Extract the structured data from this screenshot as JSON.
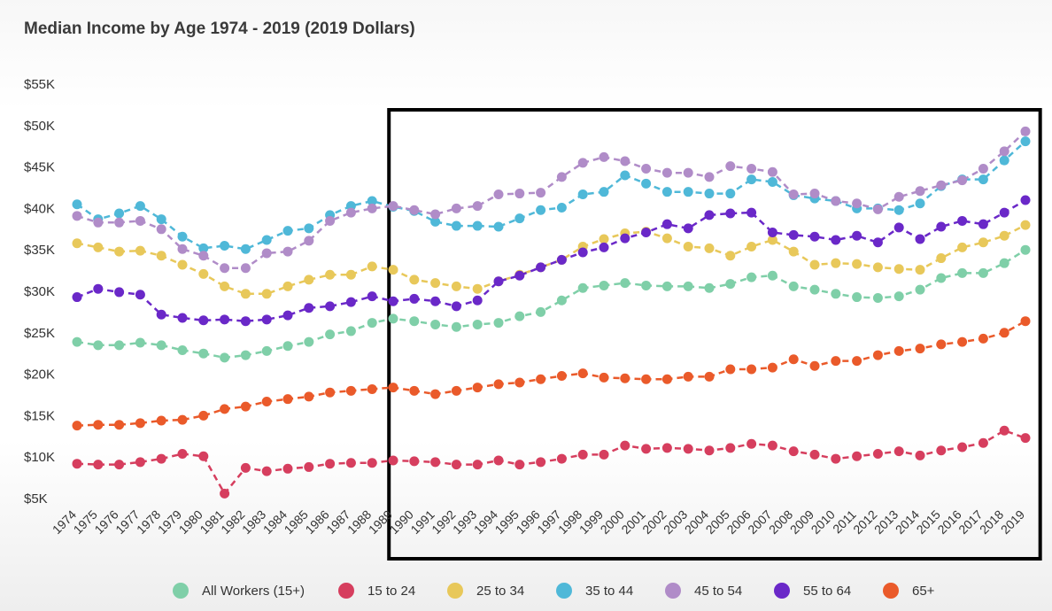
{
  "chart_data": {
    "type": "line",
    "title": "Median Income by Age 1974 - 2019 (2019 Dollars)",
    "xlabel": "",
    "ylabel": "",
    "ylim": [
      5000,
      55000
    ],
    "y_ticks": [
      {
        "value": 5000,
        "label": "$5K"
      },
      {
        "value": 10000,
        "label": "$10K"
      },
      {
        "value": 15000,
        "label": "$15K"
      },
      {
        "value": 20000,
        "label": "$20K"
      },
      {
        "value": 25000,
        "label": "$25K"
      },
      {
        "value": 30000,
        "label": "$30K"
      },
      {
        "value": 35000,
        "label": "$35K"
      },
      {
        "value": 40000,
        "label": "$40K"
      },
      {
        "value": 45000,
        "label": "$45K"
      },
      {
        "value": 50000,
        "label": "$50K"
      },
      {
        "value": 55000,
        "label": "$55K"
      }
    ],
    "x": [
      "1974",
      "1975",
      "1976",
      "1977",
      "1978",
      "1979",
      "1980",
      "1981",
      "1982",
      "1983",
      "1984",
      "1985",
      "1986",
      "1987",
      "1988",
      "1989",
      "1990",
      "1991",
      "1992",
      "1993",
      "1994",
      "1995",
      "1996",
      "1997",
      "1998",
      "1999",
      "2000",
      "2001",
      "2002",
      "2003",
      "2004",
      "2005",
      "2006",
      "2007",
      "2008",
      "2009",
      "2010",
      "2011",
      "2012",
      "2013",
      "2014",
      "2015",
      "2016",
      "2017",
      "2018",
      "2019"
    ],
    "grid": false,
    "legend_position": "bottom",
    "highlight_box": {
      "from": "1989",
      "to": "2019",
      "color": "#000000"
    },
    "series": [
      {
        "name": "All Workers (15+)",
        "color": "#7fcfa8",
        "values": [
          23900,
          23500,
          23500,
          23800,
          23500,
          22900,
          22500,
          22000,
          22300,
          22800,
          23400,
          23900,
          24800,
          25200,
          26200,
          26700,
          26400,
          26000,
          25700,
          26000,
          26200,
          27000,
          27500,
          28900,
          30400,
          30700,
          31000,
          30700,
          30600,
          30600,
          30400,
          30900,
          31700,
          31900,
          30600,
          30200,
          29700,
          29300,
          29200,
          29400,
          30200,
          31600,
          32200,
          32200,
          33400,
          35000
        ]
      },
      {
        "name": "15 to 24",
        "color": "#d63e5e",
        "values": [
          9200,
          9100,
          9100,
          9400,
          9800,
          10400,
          10100,
          5600,
          8700,
          8300,
          8600,
          8800,
          9200,
          9300,
          9300,
          9600,
          9500,
          9400,
          9100,
          9100,
          9600,
          9100,
          9400,
          9800,
          10300,
          10300,
          11400,
          11000,
          11100,
          11000,
          10800,
          11100,
          11600,
          11400,
          10700,
          10300,
          9800,
          10100,
          10400,
          10700,
          10200,
          10800,
          11200,
          11700,
          13200,
          12300
        ]
      },
      {
        "name": "25 to 34",
        "color": "#e8c85a",
        "values": [
          35800,
          35300,
          34800,
          34900,
          34300,
          33200,
          32100,
          30600,
          29700,
          29700,
          30600,
          31400,
          32000,
          32000,
          33000,
          32600,
          31400,
          31000,
          30600,
          30300,
          31200,
          32000,
          32900,
          33800,
          35400,
          36300,
          37000,
          37200,
          36400,
          35400,
          35200,
          34300,
          35400,
          36200,
          34800,
          33200,
          33400,
          33300,
          32900,
          32700,
          32600,
          34000,
          35300,
          35900,
          36700,
          38000
        ]
      },
      {
        "name": "35 to 44",
        "color": "#4fb8d8",
        "values": [
          40500,
          38700,
          39400,
          40300,
          38700,
          36600,
          35200,
          35500,
          35100,
          36200,
          37300,
          37600,
          39200,
          40300,
          40900,
          40200,
          39700,
          38400,
          37900,
          37900,
          37800,
          38800,
          39800,
          40100,
          41700,
          42000,
          44000,
          43000,
          42000,
          42000,
          41800,
          41800,
          43500,
          43200,
          41600,
          41200,
          40900,
          40000,
          40000,
          39800,
          40600,
          42700,
          43500,
          43500,
          45800,
          48100
        ]
      },
      {
        "name": "45 to 54",
        "color": "#b08cc8",
        "values": [
          39100,
          38300,
          38300,
          38500,
          37500,
          35100,
          34300,
          32800,
          32800,
          34600,
          34800,
          36100,
          38500,
          39500,
          40000,
          40300,
          39800,
          39300,
          40000,
          40300,
          41700,
          41800,
          41900,
          43800,
          45500,
          46200,
          45700,
          44800,
          44300,
          44300,
          43800,
          45100,
          44800,
          44400,
          41700,
          41800,
          40900,
          40600,
          39900,
          41400,
          42100,
          42800,
          43400,
          44800,
          46900,
          49300
        ]
      },
      {
        "name": "55 to 64",
        "color": "#6a28c8",
        "values": [
          29300,
          30300,
          29900,
          29600,
          27200,
          26800,
          26500,
          26600,
          26400,
          26600,
          27100,
          28000,
          28200,
          28700,
          29400,
          28800,
          29100,
          28800,
          28200,
          28900,
          31200,
          31900,
          32900,
          33800,
          34700,
          35300,
          36400,
          37100,
          38100,
          37600,
          39200,
          39400,
          39500,
          37100,
          36800,
          36600,
          36200,
          36700,
          35900,
          37700,
          36300,
          37800,
          38500,
          38100,
          39500,
          41000
        ]
      },
      {
        "name": "65+",
        "color": "#ea5a2a",
        "values": [
          13800,
          13900,
          13900,
          14100,
          14400,
          14500,
          15000,
          15800,
          16100,
          16700,
          17000,
          17300,
          17800,
          18000,
          18200,
          18400,
          18000,
          17600,
          18000,
          18400,
          18800,
          19000,
          19400,
          19800,
          20100,
          19600,
          19500,
          19400,
          19400,
          19700,
          19700,
          20600,
          20600,
          20800,
          21800,
          21000,
          21600,
          21600,
          22300,
          22800,
          23100,
          23600,
          23900,
          24300,
          25000,
          26400
        ]
      }
    ]
  }
}
